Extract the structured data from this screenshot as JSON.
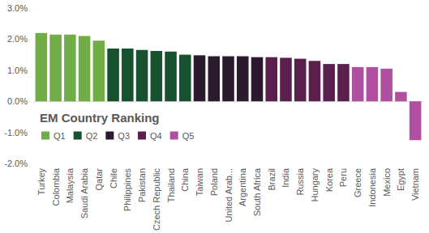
{
  "chart_data": {
    "type": "bar",
    "title": "EM Country Ranking",
    "categories": [
      "Turkey",
      "Colombia",
      "Malaysia",
      "Saudi Arabia",
      "Qatar",
      "Chile",
      "Philippines",
      "Pakistan",
      "Czech Republic",
      "Thailand",
      "China",
      "Taiwan",
      "Poland",
      "United Arab...",
      "Argentina",
      "South Africa",
      "Brazil",
      "India",
      "Russia",
      "Hungary",
      "Korea",
      "Peru",
      "Greece",
      "Indonesia",
      "Mexico",
      "Egypt",
      "Vietnam"
    ],
    "series": [
      {
        "name": "Q1",
        "color": "#70ad47",
        "values": [
          2.2,
          2.15,
          2.15,
          2.1,
          1.95,
          null,
          null,
          null,
          null,
          null,
          null,
          null,
          null,
          null,
          null,
          null,
          null,
          null,
          null,
          null,
          null,
          null,
          null,
          null,
          null,
          null,
          null
        ]
      },
      {
        "name": "Q2",
        "color": "#17512e",
        "values": [
          null,
          null,
          null,
          null,
          null,
          1.7,
          1.7,
          1.65,
          1.62,
          1.6,
          1.5,
          null,
          null,
          null,
          null,
          null,
          null,
          null,
          null,
          null,
          null,
          null,
          null,
          null,
          null,
          null,
          null
        ]
      },
      {
        "name": "Q3",
        "color": "#2b1a2e",
        "values": [
          null,
          null,
          null,
          null,
          null,
          null,
          null,
          null,
          null,
          null,
          null,
          1.48,
          1.45,
          1.45,
          1.45,
          1.42,
          null,
          null,
          null,
          null,
          null,
          null,
          null,
          null,
          null,
          null,
          null
        ]
      },
      {
        "name": "Q4",
        "color": "#5b1f4e",
        "values": [
          null,
          null,
          null,
          null,
          null,
          null,
          null,
          null,
          null,
          null,
          null,
          null,
          null,
          null,
          null,
          null,
          1.42,
          1.4,
          1.37,
          1.3,
          1.2,
          1.2,
          null,
          null,
          null,
          null,
          null
        ]
      },
      {
        "name": "Q5",
        "color": "#b04fa0",
        "values": [
          null,
          null,
          null,
          null,
          null,
          null,
          null,
          null,
          null,
          null,
          null,
          null,
          null,
          null,
          null,
          null,
          null,
          null,
          null,
          null,
          null,
          null,
          1.1,
          1.1,
          1.05,
          0.3,
          -1.25
        ]
      }
    ],
    "ylim": [
      -2,
      3
    ],
    "yticks": [
      {
        "value": -2,
        "label": "-2.0%"
      },
      {
        "value": -1,
        "label": "-1.0%"
      },
      {
        "value": 0,
        "label": "0.0%"
      },
      {
        "value": 1,
        "label": "1.0%"
      },
      {
        "value": 2,
        "label": "2.0%"
      },
      {
        "value": 3,
        "label": "3.0%"
      }
    ],
    "grid": false,
    "legend": "left"
  }
}
